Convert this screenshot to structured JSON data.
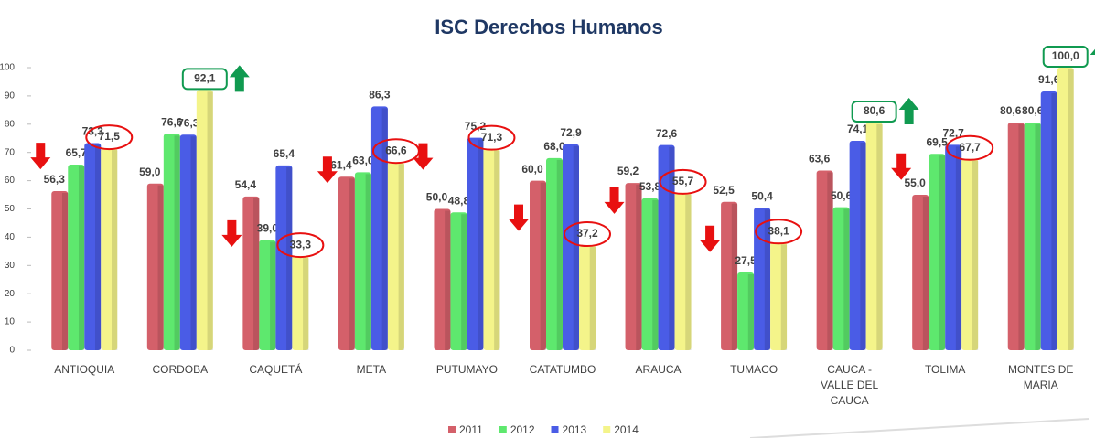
{
  "chart_data": {
    "type": "bar",
    "title": "ISC Derechos Humanos",
    "categories": [
      "ANTIOQUIA",
      "CORDOBA",
      "CAQUETÁ",
      "META",
      "PUTUMAYO",
      "CATATUMBO",
      "ARAUCA",
      "TUMACO",
      "CAUCA -\nVALLE DEL\nCAUCA",
      "TOLIMA",
      "MONTES DE\nMARIA"
    ],
    "series": [
      {
        "name": "2011",
        "color": "#d4606a",
        "values": [
          56.3,
          59.0,
          54.4,
          61.4,
          50.0,
          60.0,
          59.2,
          52.5,
          63.6,
          55.0,
          80.6
        ],
        "value_labels": [
          "56,3",
          "59,0",
          "54,4",
          "61,4",
          "50,0",
          "60,0",
          "59,2",
          "52,5",
          "63,6",
          "55,0",
          "80,6"
        ]
      },
      {
        "name": "2012",
        "color": "#5ee86e",
        "values": [
          65.7,
          76.6,
          39.0,
          63.0,
          48.8,
          68.0,
          53.8,
          27.5,
          50.6,
          69.5,
          80.6
        ],
        "value_labels": [
          "65,7",
          "76,6",
          "39,0",
          "63,0",
          "48,8",
          "68,0",
          "53,8",
          "27,5",
          "50,6",
          "69,5",
          "80,6"
        ]
      },
      {
        "name": "2013",
        "color": "#4a5ce6",
        "values": [
          73.3,
          76.3,
          65.4,
          86.3,
          75.2,
          72.9,
          72.6,
          50.4,
          74.1,
          72.7,
          91.6
        ],
        "value_labels": [
          "73,3",
          "76,3",
          "65,4",
          "86,3",
          "75,2",
          "72,9",
          "72,6",
          "50,4",
          "74,1",
          "72,7",
          "91,6"
        ]
      },
      {
        "name": "2014",
        "color": "#f4f48a",
        "values": [
          71.5,
          92.1,
          33.3,
          66.6,
          71.3,
          37.2,
          55.7,
          38.1,
          80.6,
          67.7,
          100.0
        ],
        "value_labels": [
          "71,5",
          "92,1",
          "33,3",
          "66,6",
          "71,3",
          "37,2",
          "55,7",
          "38,1",
          "80,6",
          "67,7",
          "100,0"
        ]
      }
    ],
    "trend": [
      "down",
      "up",
      "down",
      "down",
      "down",
      "down",
      "down",
      "down",
      "up",
      "down",
      "up"
    ],
    "trend_colors": {
      "up": "#109a50",
      "down": "#e81010"
    },
    "ylim": [
      0,
      100
    ],
    "yticks": [
      0,
      10,
      20,
      30,
      40,
      50,
      60,
      70,
      80,
      90,
      100
    ],
    "grid": false,
    "legend": "bottom"
  }
}
